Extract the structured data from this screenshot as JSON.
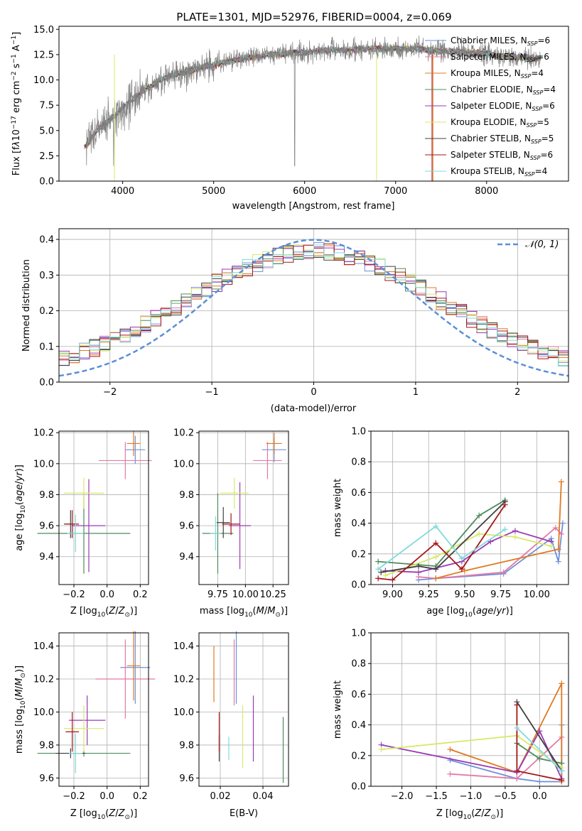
{
  "chart_data": [
    {
      "id": "spectrum",
      "type": "line",
      "title": "PLATE=1301, MJD=52976, FIBERID=0004, z=0.069",
      "xlabel": "wavelength [Angstrom, rest frame]",
      "ylabel": "Flux [f_λ 10^-17 erg cm^-2 s^-1 A^-1]",
      "xlim": [
        3300,
        8900
      ],
      "ylim": [
        0,
        15.3
      ],
      "xticks": [
        4000,
        5000,
        6000,
        7000,
        8000
      ],
      "yticks": [
        0.0,
        2.5,
        5.0,
        7.5,
        10.0,
        12.5,
        15.0
      ],
      "legend_position": "top-right",
      "data_series": {
        "name": "data",
        "color": "#808080"
      },
      "spectrum_shape": {
        "x": [
          3600,
          3700,
          3800,
          3900,
          4000,
          4100,
          4200,
          4300,
          4400,
          4600,
          4800,
          5000,
          5200,
          5400,
          5600,
          5800,
          6000,
          6200,
          6400,
          6600,
          6800,
          7000,
          7200,
          7400,
          7600,
          7800,
          8000,
          8200,
          8400,
          8600
        ],
        "y": [
          3.5,
          4.8,
          5.6,
          6.4,
          7.2,
          8.0,
          8.8,
          9.3,
          10.0,
          10.6,
          11.1,
          11.5,
          11.9,
          12.2,
          12.5,
          12.6,
          12.7,
          12.9,
          13.0,
          13.0,
          13.1,
          13.1,
          13.1,
          12.9,
          12.8,
          12.7,
          12.6,
          12.3,
          12.2,
          12.1
        ]
      },
      "series": [
        {
          "name": "Chabrier MILES, N_SSP=6",
          "color": "#6f8fd8"
        },
        {
          "name": "Salpeter MILES, N_SSP=6",
          "color": "#e27aa8"
        },
        {
          "name": "Kroupa MILES, N_SSP=4",
          "color": "#e07a24"
        },
        {
          "name": "Chabrier ELODIE, N_SSP=4",
          "color": "#4c8c5a"
        },
        {
          "name": "Salpeter ELODIE, N_SSP=6",
          "color": "#9a3ab5"
        },
        {
          "name": "Kroupa ELODIE, N_SSP=5",
          "color": "#d8e86a"
        },
        {
          "name": "Chabrier STELIB, N_SSP=5",
          "color": "#404040"
        },
        {
          "name": "Salpeter STELIB, N_SSP=6",
          "color": "#a51616"
        },
        {
          "name": "Kroupa STELIB, N_SSP=4",
          "color": "#82dada"
        }
      ]
    },
    {
      "id": "residuals",
      "type": "histogram",
      "xlabel": "(data-model)/error",
      "ylabel": "Normed distribution",
      "xlim": [
        -2.5,
        2.5
      ],
      "ylim": [
        0,
        0.43
      ],
      "xticks": [
        -2,
        -1,
        0,
        1,
        2
      ],
      "yticks": [
        0.0,
        0.1,
        0.2,
        0.3,
        0.4
      ],
      "grid": true,
      "bin_width": 0.1,
      "bins_from": -2.5,
      "reference": {
        "name": "𝒩(0, 1)",
        "color": "#5b8fd6",
        "style": "dashed"
      },
      "legend_position": "top-right"
    },
    {
      "id": "age-vs-Z",
      "type": "errorbar",
      "xlabel": "Z [log10(Z/Z⊙)]",
      "ylabel": "age  [log10(age/yr)]",
      "xlim": [
        -0.29,
        0.25
      ],
      "ylim": [
        9.22,
        10.21
      ],
      "xticks": [
        -0.2,
        0.0,
        0.2
      ],
      "yticks": [
        9.4,
        9.6,
        9.8,
        10.0,
        10.2
      ],
      "points": [
        {
          "x": 0.17,
          "y": 10.09,
          "xerr": 0.06,
          "yerr": 0.09,
          "color": "#6f8fd8"
        },
        {
          "x": 0.11,
          "y": 10.02,
          "xerr": 0.16,
          "yerr": 0.12,
          "color": "#e27aa8"
        },
        {
          "x": 0.16,
          "y": 10.13,
          "xerr": 0.04,
          "yerr": 0.08,
          "color": "#e07a24"
        },
        {
          "x": -0.14,
          "y": 9.55,
          "xerr": 0.28,
          "yerr": 0.26,
          "color": "#4c8c5a"
        },
        {
          "x": -0.11,
          "y": 9.6,
          "xerr": 0.1,
          "yerr": 0.3,
          "color": "#9a3ab5"
        },
        {
          "x": -0.14,
          "y": 9.81,
          "xerr": 0.12,
          "yerr": 0.1,
          "color": "#d8e86a"
        },
        {
          "x": -0.22,
          "y": 9.61,
          "xerr": 0.04,
          "yerr": 0.09,
          "color": "#404040"
        },
        {
          "x": -0.21,
          "y": 9.61,
          "xerr": 0.04,
          "yerr": 0.09,
          "color": "#a51616"
        },
        {
          "x": -0.19,
          "y": 9.55,
          "xerr": 0.05,
          "yerr": 0.12,
          "color": "#82dada"
        }
      ]
    },
    {
      "id": "age-vs-mass",
      "type": "errorbar",
      "xlabel": "mass [log10(M/M⊙)]",
      "ylabel": "",
      "xlim": [
        9.58,
        10.39
      ],
      "ylim": [
        9.22,
        10.21
      ],
      "xticks": [
        9.75,
        10.0,
        10.25
      ],
      "yticks": [
        9.4,
        9.6,
        9.8,
        10.0,
        10.2
      ],
      "points": [
        {
          "x": 10.26,
          "y": 10.09,
          "xerr": 0.11,
          "yerr": 0.08,
          "color": "#6f8fd8"
        },
        {
          "x": 10.2,
          "y": 10.02,
          "xerr": 0.13,
          "yerr": 0.12,
          "color": "#e27aa8"
        },
        {
          "x": 10.26,
          "y": 10.13,
          "xerr": 0.07,
          "yerr": 0.07,
          "color": "#e07a24"
        },
        {
          "x": 9.75,
          "y": 9.55,
          "xerr": 0.14,
          "yerr": 0.26,
          "color": "#4c8c5a"
        },
        {
          "x": 9.95,
          "y": 9.6,
          "xerr": 0.1,
          "yerr": 0.28,
          "color": "#9a3ab5"
        },
        {
          "x": 9.9,
          "y": 9.81,
          "xerr": 0.13,
          "yerr": 0.1,
          "color": "#d8e86a"
        },
        {
          "x": 9.8,
          "y": 9.62,
          "xerr": 0.06,
          "yerr": 0.1,
          "color": "#404040"
        },
        {
          "x": 9.87,
          "y": 9.61,
          "xerr": 0.08,
          "yerr": 0.07,
          "color": "#a51616"
        },
        {
          "x": 9.73,
          "y": 9.55,
          "xerr": 0.05,
          "yerr": 0.11,
          "color": "#82dada"
        }
      ]
    },
    {
      "id": "mass-weight-vs-age",
      "type": "line",
      "xlabel": "age  [log10(age/yr)]",
      "ylabel": "mass weight",
      "xlim": [
        8.85,
        10.22
      ],
      "ylim": [
        0,
        1.0
      ],
      "xticks": [
        9.0,
        9.25,
        9.5,
        9.75,
        10.0
      ],
      "yticks": [
        0.0,
        0.2,
        0.4,
        0.6,
        0.8,
        1.0
      ],
      "grid": true,
      "series": [
        {
          "color": "#6f8fd8",
          "x": [
            9.18,
            9.3,
            9.77,
            10.1,
            10.15,
            10.18
          ],
          "y": [
            0.03,
            0.04,
            0.07,
            0.3,
            0.15,
            0.4
          ]
        },
        {
          "color": "#e27aa8",
          "x": [
            9.18,
            9.3,
            9.77,
            10.13,
            10.17
          ],
          "y": [
            0.05,
            0.04,
            0.08,
            0.37,
            0.33
          ]
        },
        {
          "color": "#e07a24",
          "x": [
            9.3,
            9.5,
            10.15,
            10.17
          ],
          "y": [
            0.04,
            0.09,
            0.23,
            0.67
          ]
        },
        {
          "color": "#4c8c5a",
          "x": [
            8.9,
            9.3,
            9.6,
            9.78
          ],
          "y": [
            0.15,
            0.12,
            0.45,
            0.55
          ]
        },
        {
          "color": "#9a3ab5",
          "x": [
            8.95,
            9.18,
            9.48,
            9.68,
            9.85,
            10.1
          ],
          "y": [
            0.09,
            0.08,
            0.15,
            0.28,
            0.35,
            0.28
          ]
        },
        {
          "color": "#d8e86a",
          "x": [
            8.95,
            9.3,
            9.6,
            9.85,
            10.1
          ],
          "y": [
            0.06,
            0.18,
            0.33,
            0.31,
            0.25
          ]
        },
        {
          "color": "#404040",
          "x": [
            8.92,
            9.18,
            9.3,
            9.78
          ],
          "y": [
            0.08,
            0.12,
            0.1,
            0.54
          ]
        },
        {
          "color": "#a51616",
          "x": [
            8.9,
            9.0,
            9.3,
            9.48,
            9.78
          ],
          "y": [
            0.04,
            0.03,
            0.27,
            0.1,
            0.52
          ]
        },
        {
          "color": "#82dada",
          "x": [
            8.9,
            9.3,
            9.48,
            9.78
          ],
          "y": [
            0.1,
            0.38,
            0.17,
            0.36
          ]
        }
      ]
    },
    {
      "id": "mass-vs-Z",
      "type": "errorbar",
      "xlabel": "Z [log10(Z/Z⊙)]",
      "ylabel": "mass [log10(M/M⊙)]",
      "xlim": [
        -0.29,
        0.25
      ],
      "ylim": [
        9.55,
        10.48
      ],
      "xticks": [
        -0.2,
        0.0,
        0.2
      ],
      "yticks": [
        9.6,
        9.8,
        10.0,
        10.2,
        10.4
      ],
      "points": [
        {
          "x": 0.17,
          "y": 10.27,
          "xerr": 0.09,
          "yerr": 0.22,
          "color": "#6f8fd8"
        },
        {
          "x": 0.11,
          "y": 10.2,
          "xerr": 0.18,
          "yerr": 0.24,
          "color": "#e27aa8"
        },
        {
          "x": 0.16,
          "y": 10.28,
          "xerr": 0.04,
          "yerr": 0.21,
          "color": "#e07a24"
        },
        {
          "x": -0.14,
          "y": 9.75,
          "xerr": 0.28,
          "yerr": 0.02,
          "color": "#4c8c5a"
        },
        {
          "x": -0.12,
          "y": 9.95,
          "xerr": 0.11,
          "yerr": 0.15,
          "color": "#9a3ab5"
        },
        {
          "x": -0.14,
          "y": 9.9,
          "xerr": 0.12,
          "yerr": 0.14,
          "color": "#d8e86a"
        },
        {
          "x": -0.22,
          "y": 9.75,
          "xerr": 0.09,
          "yerr": 0.03,
          "color": "#404040"
        },
        {
          "x": -0.21,
          "y": 9.88,
          "xerr": 0.04,
          "yerr": 0.12,
          "color": "#a51616"
        },
        {
          "x": -0.19,
          "y": 9.75,
          "xerr": 0.04,
          "yerr": 0.12,
          "color": "#82dada"
        }
      ]
    },
    {
      "id": "mass-vs-ebv",
      "type": "errorbar",
      "xlabel": "E(B-V)",
      "ylabel": "",
      "xlim": [
        0.01,
        0.052
      ],
      "ylim": [
        9.55,
        10.48
      ],
      "xticks": [
        0.02,
        0.04
      ],
      "yticks": [
        9.6,
        9.8,
        10.0,
        10.2,
        10.4
      ],
      "points": [
        {
          "x": 0.0275,
          "y": 10.27,
          "yerr": 0.22,
          "color": "#6f8fd8"
        },
        {
          "x": 0.0265,
          "y": 10.24,
          "yerr": 0.2,
          "color": "#e27aa8"
        },
        {
          "x": 0.017,
          "y": 10.23,
          "yerr": 0.17,
          "color": "#e07a24"
        },
        {
          "x": 0.0495,
          "y": 9.77,
          "yerr": 0.2,
          "color": "#4c8c5a"
        },
        {
          "x": 0.0355,
          "y": 9.9,
          "yerr": 0.2,
          "color": "#9a3ab5"
        },
        {
          "x": 0.0305,
          "y": 9.85,
          "yerr": 0.19,
          "color": "#d8e86a"
        },
        {
          "x": 0.0195,
          "y": 9.78,
          "yerr": 0.08,
          "color": "#404040"
        },
        {
          "x": 0.0195,
          "y": 9.88,
          "yerr": 0.12,
          "color": "#a51616"
        },
        {
          "x": 0.024,
          "y": 9.78,
          "yerr": 0.07,
          "color": "#82dada"
        }
      ]
    },
    {
      "id": "mass-weight-vs-Z",
      "type": "line",
      "xlabel": "Z [log10(Z/Z⊙)]",
      "ylabel": "mass weight",
      "xlim": [
        -2.45,
        0.42
      ],
      "ylim": [
        0,
        1.0
      ],
      "xticks": [
        -2.0,
        -1.5,
        -1.0,
        -0.5,
        0.0
      ],
      "yticks": [
        0.0,
        0.2,
        0.4,
        0.6,
        0.8,
        1.0
      ],
      "grid": true,
      "series": [
        {
          "color": "#6f8fd8",
          "x": [
            -1.3,
            -0.33,
            0.0,
            0.32,
            0.32
          ],
          "y": [
            0.17,
            0.05,
            0.03,
            0.03,
            0.4
          ]
        },
        {
          "color": "#e27aa8",
          "x": [
            -1.3,
            -0.33,
            0.32
          ],
          "y": [
            0.08,
            0.05,
            0.32
          ]
        },
        {
          "color": "#e07a24",
          "x": [
            -1.3,
            -0.33,
            0.32,
            0.32
          ],
          "y": [
            0.24,
            0.09,
            0.67,
            0.03
          ]
        },
        {
          "color": "#4c8c5a",
          "x": [
            -0.33,
            0.0,
            0.32
          ],
          "y": [
            0.28,
            0.18,
            0.15
          ]
        },
        {
          "color": "#9a3ab5",
          "x": [
            -2.3,
            -0.33,
            0.0,
            0.32
          ],
          "y": [
            0.27,
            0.09,
            0.36,
            0.05
          ]
        },
        {
          "color": "#d8e86a",
          "x": [
            -2.3,
            -0.33,
            0.32
          ],
          "y": [
            0.24,
            0.33,
            0.12
          ]
        },
        {
          "color": "#404040",
          "x": [
            -0.33,
            0.32
          ],
          "y": [
            0.55,
            0.1
          ]
        },
        {
          "color": "#a51616",
          "x": [
            -0.33,
            -0.33,
            0.32
          ],
          "y": [
            0.53,
            0.1,
            0.04
          ]
        },
        {
          "color": "#82dada",
          "x": [
            -0.33,
            0.32
          ],
          "y": [
            0.38,
            0.1
          ]
        }
      ]
    }
  ]
}
